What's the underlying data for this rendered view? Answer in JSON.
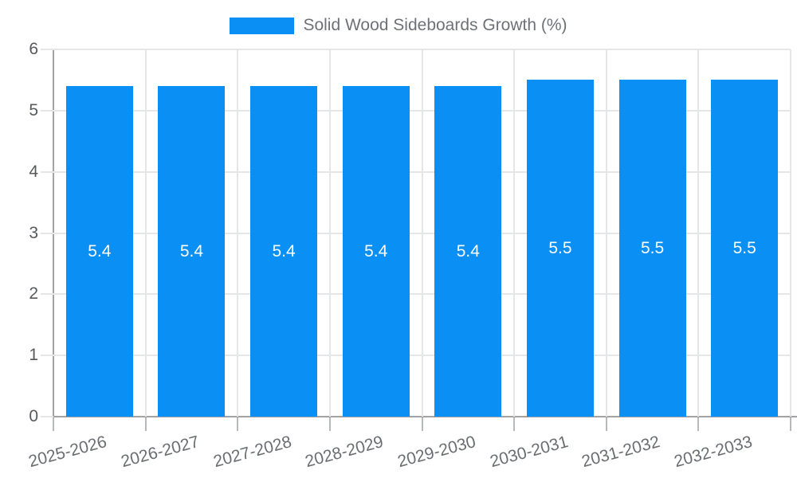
{
  "chart_data": {
    "type": "bar",
    "title": "Solid Wood Sideboards Growth (%)",
    "categories": [
      "2025-2026",
      "2026-2027",
      "2027-2028",
      "2028-2029",
      "2029-2030",
      "2030-2031",
      "2031-2032",
      "2032-2033"
    ],
    "values": [
      5.4,
      5.4,
      5.4,
      5.4,
      5.4,
      5.5,
      5.5,
      5.5
    ],
    "value_labels": [
      "5.4",
      "5.4",
      "5.4",
      "5.4",
      "5.4",
      "5.5",
      "5.5",
      "5.5"
    ],
    "ylim": [
      0,
      6
    ],
    "yticks": [
      "0",
      "1",
      "2",
      "3",
      "4",
      "5",
      "6"
    ],
    "xlabel": "",
    "ylabel": "",
    "grid": true,
    "legend_position": "top-center",
    "colors": {
      "background": "#ffffff",
      "bar": "#0a8ff5",
      "value_label": "#ffffff",
      "grid": "#e5e6e8",
      "axis": "#a3a3a5",
      "tick": "#b7babd",
      "y_label_text": "#57595d",
      "x_label_text": "#6a6d71",
      "legend_text": "#6e7177"
    }
  }
}
